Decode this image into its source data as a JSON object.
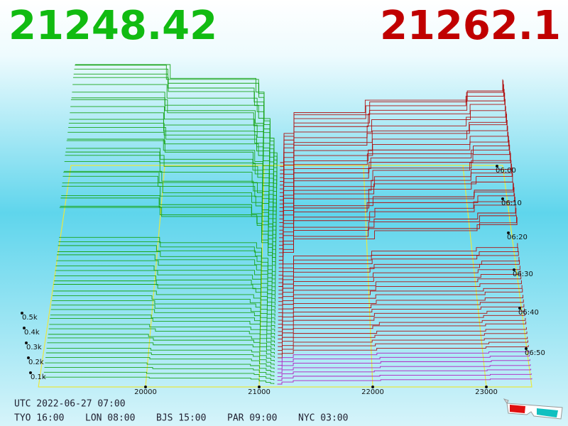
{
  "header": {
    "bid_price": "21248.42",
    "ask_price": "21262.1"
  },
  "depth_chart": {
    "xticks": [
      20000,
      21000,
      22000,
      23000
    ],
    "depth_ticks": [
      {
        "value": 100,
        "label": "0.1k"
      },
      {
        "value": 200,
        "label": "0.2k"
      },
      {
        "value": 300,
        "label": "0.3k"
      },
      {
        "value": 400,
        "label": "0.4k"
      },
      {
        "value": 500,
        "label": "0.5k"
      }
    ],
    "time_ticks": [
      "06:00",
      "06:10",
      "06:20",
      "06:30",
      "06:40",
      "06:50"
    ]
  },
  "footer": {
    "utc": "UTC 2022-06-27 07:00",
    "clocks": [
      "TYO 16:00",
      "LON 08:00",
      "BJS 15:00",
      "PAR 09:00",
      "NYC 03:00"
    ]
  }
}
